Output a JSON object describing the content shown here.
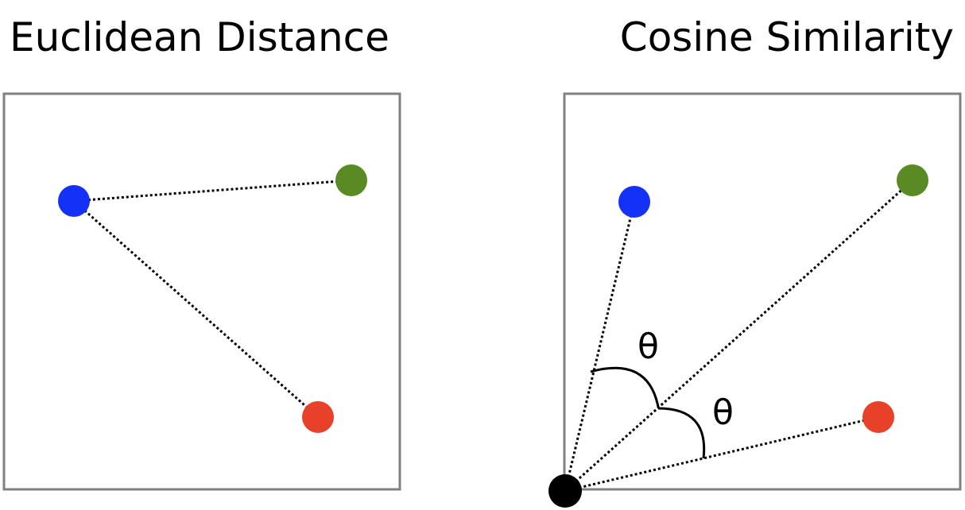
{
  "left_panel": {
    "title": "Euclidean Distance"
  },
  "right_panel": {
    "title": "Cosine Similarity",
    "angle_label_upper": "θ",
    "angle_label_lower": "θ"
  },
  "colors": {
    "blue_point": "#1432f5",
    "green_point": "#5a8a23",
    "red_point": "#e8412a",
    "origin_point": "#000000",
    "frame": "#808080"
  }
}
